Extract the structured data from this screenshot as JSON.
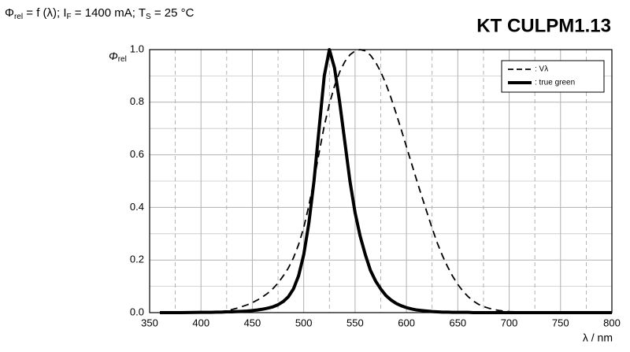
{
  "chart_data": {
    "type": "line",
    "title": [
      "Φ",
      "rel",
      " = f (λ); I",
      "F",
      " = 1400 mA; T",
      "S",
      " = 25 °C"
    ],
    "subtitle": "KT CULPM1.13",
    "y_label": [
      "Φ",
      "rel"
    ],
    "x_label": "λ / nm",
    "xlim": [
      350,
      800
    ],
    "xticks": [
      350,
      400,
      450,
      500,
      550,
      600,
      650,
      700,
      750,
      800
    ],
    "x_minor_ticks": [
      375,
      425,
      475,
      525,
      575,
      625,
      675,
      725,
      775
    ],
    "ylim": [
      0,
      1
    ],
    "yticks": [
      {
        "value": 0,
        "label": "0.0"
      },
      0.2,
      0.4,
      0.6,
      0.8,
      {
        "value": 1,
        "label": "1.0"
      }
    ],
    "y_minor_ticks": [
      0.1,
      0.3,
      0.5,
      0.7,
      0.9
    ],
    "grid": true,
    "legend": "top-right",
    "x": [
      360,
      380,
      400,
      405,
      410,
      415,
      420,
      425,
      430,
      435,
      440,
      445,
      450,
      455,
      460,
      465,
      470,
      475,
      480,
      485,
      490,
      495,
      500,
      505,
      510,
      515,
      520,
      525,
      530,
      535,
      540,
      545,
      550,
      555,
      560,
      565,
      570,
      575,
      580,
      585,
      590,
      595,
      600,
      605,
      610,
      615,
      620,
      625,
      630,
      635,
      640,
      645,
      650,
      655,
      660,
      665,
      670,
      675,
      680,
      685,
      690,
      695,
      700,
      720,
      740,
      760,
      780,
      800
    ],
    "series": [
      {
        "name": ": Vλ",
        "color": "#000000",
        "dash": true,
        "values": [
          0,
          4e-05,
          0.0004,
          0.00064,
          0.0012,
          0.00218,
          0.004,
          0.0073,
          0.0116,
          0.01684,
          0.023,
          0.0298,
          0.038,
          0.048,
          0.06,
          0.0739,
          0.091,
          0.1126,
          0.139,
          0.1693,
          0.208,
          0.2586,
          0.323,
          0.4073,
          0.503,
          0.6082,
          0.71,
          0.7932,
          0.862,
          0.9149,
          0.954,
          0.9803,
          0.995,
          1.0,
          0.995,
          0.9786,
          0.952,
          0.9154,
          0.87,
          0.8163,
          0.757,
          0.6949,
          0.631,
          0.5668,
          0.503,
          0.4412,
          0.381,
          0.321,
          0.265,
          0.217,
          0.175,
          0.1382,
          0.107,
          0.0816,
          0.061,
          0.0446,
          0.032,
          0.0232,
          0.017,
          0.01192,
          0.0082,
          0.00572,
          0.0041,
          0.00105,
          0.00025,
          6e-05,
          1.5e-05,
          0
        ]
      },
      {
        "name": ": true green",
        "color": "#000000",
        "dash": false,
        "values": [
          0,
          0,
          0.001,
          0.001,
          0.001,
          0.002,
          0.002,
          0.003,
          0.003,
          0.004,
          0.005,
          0.006,
          0.008,
          0.01,
          0.013,
          0.017,
          0.022,
          0.03,
          0.042,
          0.06,
          0.09,
          0.14,
          0.22,
          0.34,
          0.5,
          0.7,
          0.9,
          1.0,
          0.93,
          0.8,
          0.65,
          0.5,
          0.38,
          0.29,
          0.22,
          0.16,
          0.12,
          0.09,
          0.065,
          0.048,
          0.035,
          0.026,
          0.019,
          0.014,
          0.01,
          0.008,
          0.006,
          0.004,
          0.003,
          0.002,
          0.002,
          0.001,
          0.001,
          0.001,
          0.001,
          0,
          0,
          0,
          0,
          0,
          0,
          0,
          0,
          0,
          0,
          0,
          0,
          0
        ]
      }
    ]
  }
}
